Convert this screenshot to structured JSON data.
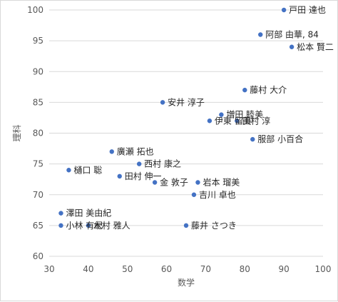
{
  "chart_data": {
    "type": "scatter",
    "title": "",
    "xlabel": "数学",
    "ylabel": "理科",
    "xlim": [
      30,
      100
    ],
    "ylim": [
      60,
      100
    ],
    "x_ticks": [
      30,
      40,
      50,
      60,
      70,
      80,
      90,
      100
    ],
    "y_ticks": [
      60,
      65,
      70,
      75,
      80,
      85,
      90,
      95,
      100
    ],
    "grid": "horizontal",
    "legend": "none",
    "marker_color": "#4472C4",
    "points": [
      {
        "x": 90,
        "y": 100,
        "label": "戸田 達也"
      },
      {
        "x": 84,
        "y": 96,
        "label": "阿部 由華, 84"
      },
      {
        "x": 92,
        "y": 94,
        "label": "松本 賢二"
      },
      {
        "x": 80,
        "y": 87,
        "label": "藤村 大介"
      },
      {
        "x": 59,
        "y": 85,
        "label": "安井 淳子"
      },
      {
        "x": 74,
        "y": 83,
        "label": "増田 睦美"
      },
      {
        "x": 71,
        "y": 82,
        "label": "伊東 留美"
      },
      {
        "x": 78,
        "y": 82,
        "label": "田村 淳"
      },
      {
        "x": 82,
        "y": 79,
        "label": "服部 小百合"
      },
      {
        "x": 46,
        "y": 77,
        "label": "廣瀬 拓也"
      },
      {
        "x": 53,
        "y": 75,
        "label": "西村 康之"
      },
      {
        "x": 35,
        "y": 74,
        "label": "樋口 聡"
      },
      {
        "x": 48,
        "y": 73,
        "label": "田村 伸一"
      },
      {
        "x": 57,
        "y": 72,
        "label": "金 敦子"
      },
      {
        "x": 68,
        "y": 72,
        "label": "岩本 瑠美"
      },
      {
        "x": 67,
        "y": 70,
        "label": "吉川 卓也"
      },
      {
        "x": 33,
        "y": 67,
        "label": "澤田 美由紀"
      },
      {
        "x": 33,
        "y": 65,
        "label": "小林 有紀"
      },
      {
        "x": 40,
        "y": 65,
        "label": "木村 雅人"
      },
      {
        "x": 65,
        "y": 65,
        "label": "藤井 さつき"
      }
    ]
  }
}
